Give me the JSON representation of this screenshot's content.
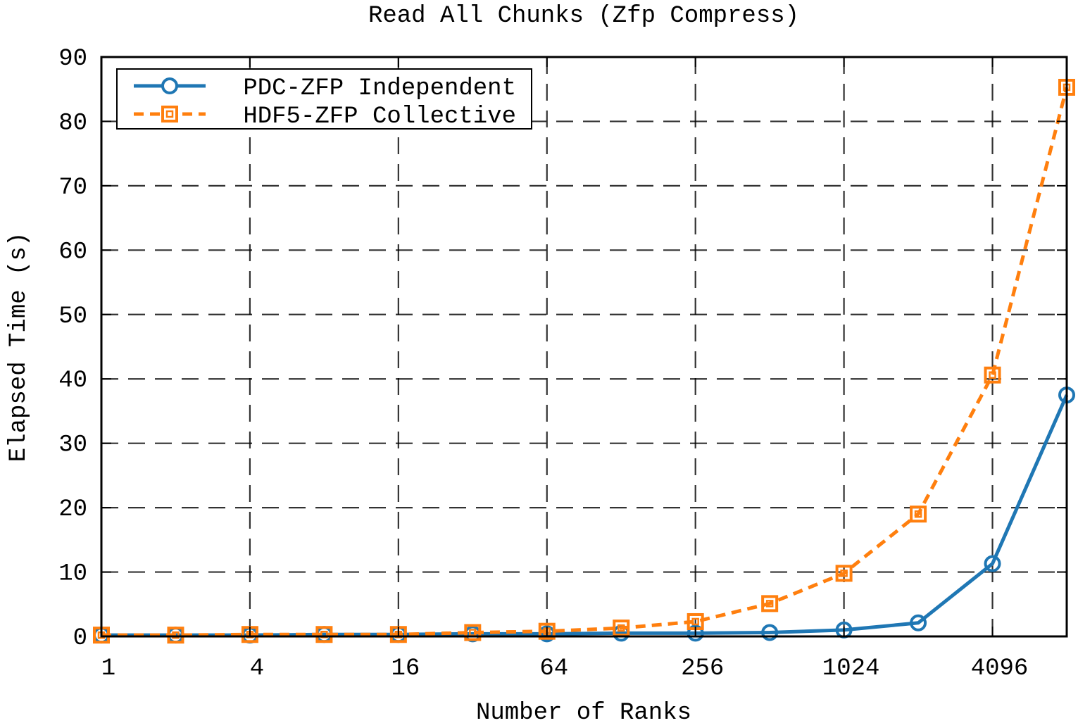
{
  "chart_data": {
    "type": "line",
    "title": "Read All Chunks (Zfp Compress)",
    "xlabel": "Number of Ranks",
    "ylabel": "Elapsed Time (s)",
    "x_scale": "log2",
    "x": [
      1,
      2,
      4,
      8,
      16,
      32,
      64,
      128,
      256,
      512,
      1024,
      2048,
      4096,
      8192
    ],
    "x_ticks": [
      "1",
      "4",
      "16",
      "64",
      "256",
      "1024",
      "4096"
    ],
    "x_tick_values": [
      1,
      4,
      16,
      64,
      256,
      1024,
      4096
    ],
    "xlim": [
      1,
      8192
    ],
    "ylim": [
      0,
      90
    ],
    "y_ticks": [
      0,
      10,
      20,
      30,
      40,
      50,
      60,
      70,
      80,
      90
    ],
    "grid": true,
    "legend_position": "top-left",
    "series": [
      {
        "name": "PDC-ZFP Independent",
        "color": "#1f77b4",
        "line_style": "solid",
        "marker": "circle",
        "values": [
          0.2,
          0.2,
          0.2,
          0.3,
          0.3,
          0.4,
          0.4,
          0.5,
          0.5,
          0.6,
          1.0,
          2.1,
          11.3,
          37.5
        ]
      },
      {
        "name": "HDF5-ZFP Collective",
        "color": "#ff7f0e",
        "line_style": "dashed",
        "marker": "square",
        "values": [
          0.2,
          0.2,
          0.3,
          0.3,
          0.3,
          0.6,
          0.8,
          1.3,
          2.3,
          5.1,
          9.8,
          19.0,
          40.6,
          85.3
        ]
      }
    ]
  }
}
